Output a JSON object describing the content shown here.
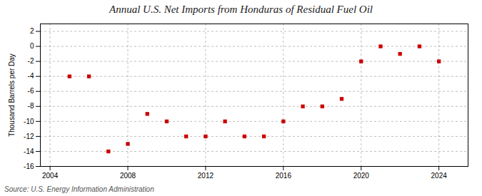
{
  "chart_data": {
    "type": "scatter",
    "title": "Annual U.S. Net Imports from Honduras of Residual Fuel Oil",
    "ylabel": "Thousand Barrels per Day",
    "source": "Source: U.S. Energy Information Administration",
    "x": [
      2005,
      2006,
      2007,
      2008,
      2009,
      2010,
      2011,
      2012,
      2013,
      2014,
      2015,
      2016,
      2017,
      2018,
      2019,
      2020,
      2021,
      2022,
      2023,
      2024
    ],
    "values": [
      -4,
      -4,
      -14,
      -13,
      -9,
      -10,
      -12,
      -12,
      -10,
      -12,
      -12,
      -10,
      -8,
      -8,
      -7,
      -2,
      0,
      -1,
      0,
      -2
    ],
    "color": "#cc0000",
    "marker": "square",
    "xlim": [
      2003.5,
      2025.5
    ],
    "xticks": [
      2004,
      2008,
      2012,
      2016,
      2020,
      2024
    ],
    "ylim": [
      -16,
      3
    ],
    "yticks": [
      2,
      0,
      -2,
      -4,
      -6,
      -8,
      -10,
      -12,
      -14,
      -16
    ],
    "grid": true
  }
}
